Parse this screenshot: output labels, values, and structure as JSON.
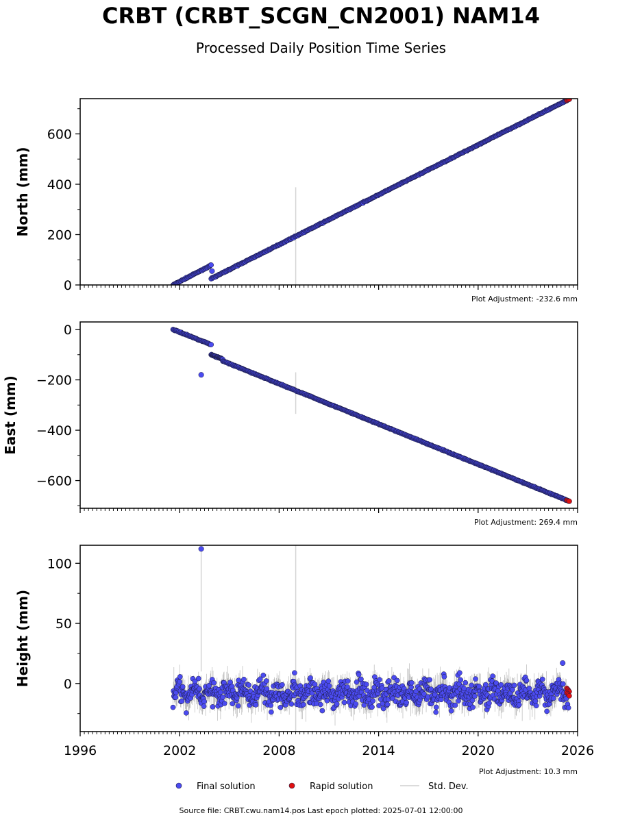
{
  "title": "CRBT (CRBT_SCGN_CN2001) NAM14",
  "subtitle": "Processed Daily Position Time Series",
  "source": "Source file: CRBT.cwu.nam14.pos  Last epoch plotted: 2025-07-01 12:00:00",
  "legend": {
    "final": "Final solution",
    "rapid": "Rapid solution",
    "std": "Std. Dev."
  },
  "colors": {
    "final": "#4b4bf0",
    "rapid": "#e01010",
    "std": "#b0b0b0",
    "edge": "#1a1a40"
  },
  "chart_data": [
    {
      "type": "scatter",
      "ylabel": "North (mm)",
      "adjustment": "Plot Adjustment: -232.6 mm",
      "xlim": [
        1996,
        2026
      ],
      "ylim": [
        0,
        740
      ],
      "yticks": [
        0,
        200,
        400,
        600
      ],
      "ytick_labels": [
        "0",
        "200",
        "400",
        "600"
      ],
      "segments": [
        {
          "x": [
            2001.6,
            2003.9
          ],
          "y": [
            0,
            78
          ]
        },
        {
          "x": [
            2003.9,
            2025.5
          ],
          "y": [
            25,
            738
          ]
        }
      ],
      "outliers": [
        {
          "x": 2003.95,
          "y": 55
        }
      ],
      "error_spikes": [
        {
          "x": 2009.0,
          "low": 0,
          "high": 388
        }
      ],
      "rapid_range": [
        2025.35,
        2025.5
      ]
    },
    {
      "type": "scatter",
      "ylabel": "East (mm)",
      "adjustment": "Plot Adjustment: 269.4 mm",
      "xlim": [
        1996,
        2026
      ],
      "ylim": [
        -710,
        30
      ],
      "yticks": [
        0,
        -200,
        -400,
        -600
      ],
      "ytick_labels": [
        "0",
        "−200",
        "−400",
        "−600"
      ],
      "segments": [
        {
          "x": [
            2001.6,
            2003.9
          ],
          "y": [
            0,
            -60
          ]
        },
        {
          "x": [
            2003.9,
            2004.6
          ],
          "y": [
            -100,
            -118
          ]
        },
        {
          "x": [
            2004.6,
            2025.5
          ],
          "y": [
            -125,
            -682
          ]
        }
      ],
      "outliers": [
        {
          "x": 2003.3,
          "y": -180
        }
      ],
      "error_spikes": [
        {
          "x": 2009.0,
          "low": -335,
          "high": -170
        }
      ],
      "rapid_range": [
        2025.35,
        2025.5
      ]
    },
    {
      "type": "scatter",
      "ylabel": "Height (mm)",
      "adjustment": "Plot Adjustment: 10.3 mm",
      "xlim": [
        1996,
        2026
      ],
      "ylim": [
        -40,
        115
      ],
      "yticks": [
        0,
        50,
        100
      ],
      "ytick_labels": [
        "0",
        "50",
        "100"
      ],
      "xticks": [
        1996,
        2002,
        2008,
        2014,
        2020,
        2026
      ],
      "xtick_labels": [
        "1996",
        "2002",
        "2008",
        "2014",
        "2020",
        "2026"
      ],
      "scatter_range": [
        2001.6,
        2025.5
      ],
      "scatter_center": -8,
      "scatter_spread": 10,
      "outliers": [
        {
          "x": 2003.3,
          "y": 112
        },
        {
          "x": 2025.1,
          "y": 17
        }
      ],
      "error_spikes": [
        {
          "x": 2009.0,
          "low": -40,
          "high": 115
        },
        {
          "x": 2003.3,
          "low": 10,
          "high": 112
        }
      ],
      "rapid_range": [
        2025.35,
        2025.5
      ]
    }
  ]
}
